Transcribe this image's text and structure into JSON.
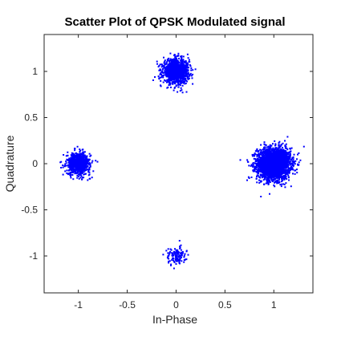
{
  "chart_data": {
    "type": "scatter",
    "title": "Scatter Plot of QPSK Modulated signal",
    "xlabel": "In-Phase",
    "ylabel": "Quadrature",
    "xlim": [
      -1.35,
      1.4
    ],
    "ylim": [
      -1.4,
      1.4
    ],
    "xticks": [
      -1,
      -0.5,
      0,
      0.5,
      1
    ],
    "xtick_labels": [
      "-1",
      "-0.5",
      "0",
      "0.5",
      "1"
    ],
    "yticks": [
      -1,
      -0.5,
      0,
      0.5,
      1
    ],
    "ytick_labels": [
      "-1",
      "-0.5",
      "0",
      "0.5",
      "1"
    ],
    "grid": false,
    "marker_color": "#0000ff",
    "clusters": [
      {
        "center": [
          1,
          0
        ],
        "spread": 0.085,
        "points": 2600
      },
      {
        "center": [
          0,
          1
        ],
        "spread": 0.065,
        "points": 1200
      },
      {
        "center": [
          -1,
          0
        ],
        "spread": 0.06,
        "points": 700
      },
      {
        "center": [
          0,
          -1
        ],
        "spread": 0.05,
        "points": 120
      }
    ]
  }
}
